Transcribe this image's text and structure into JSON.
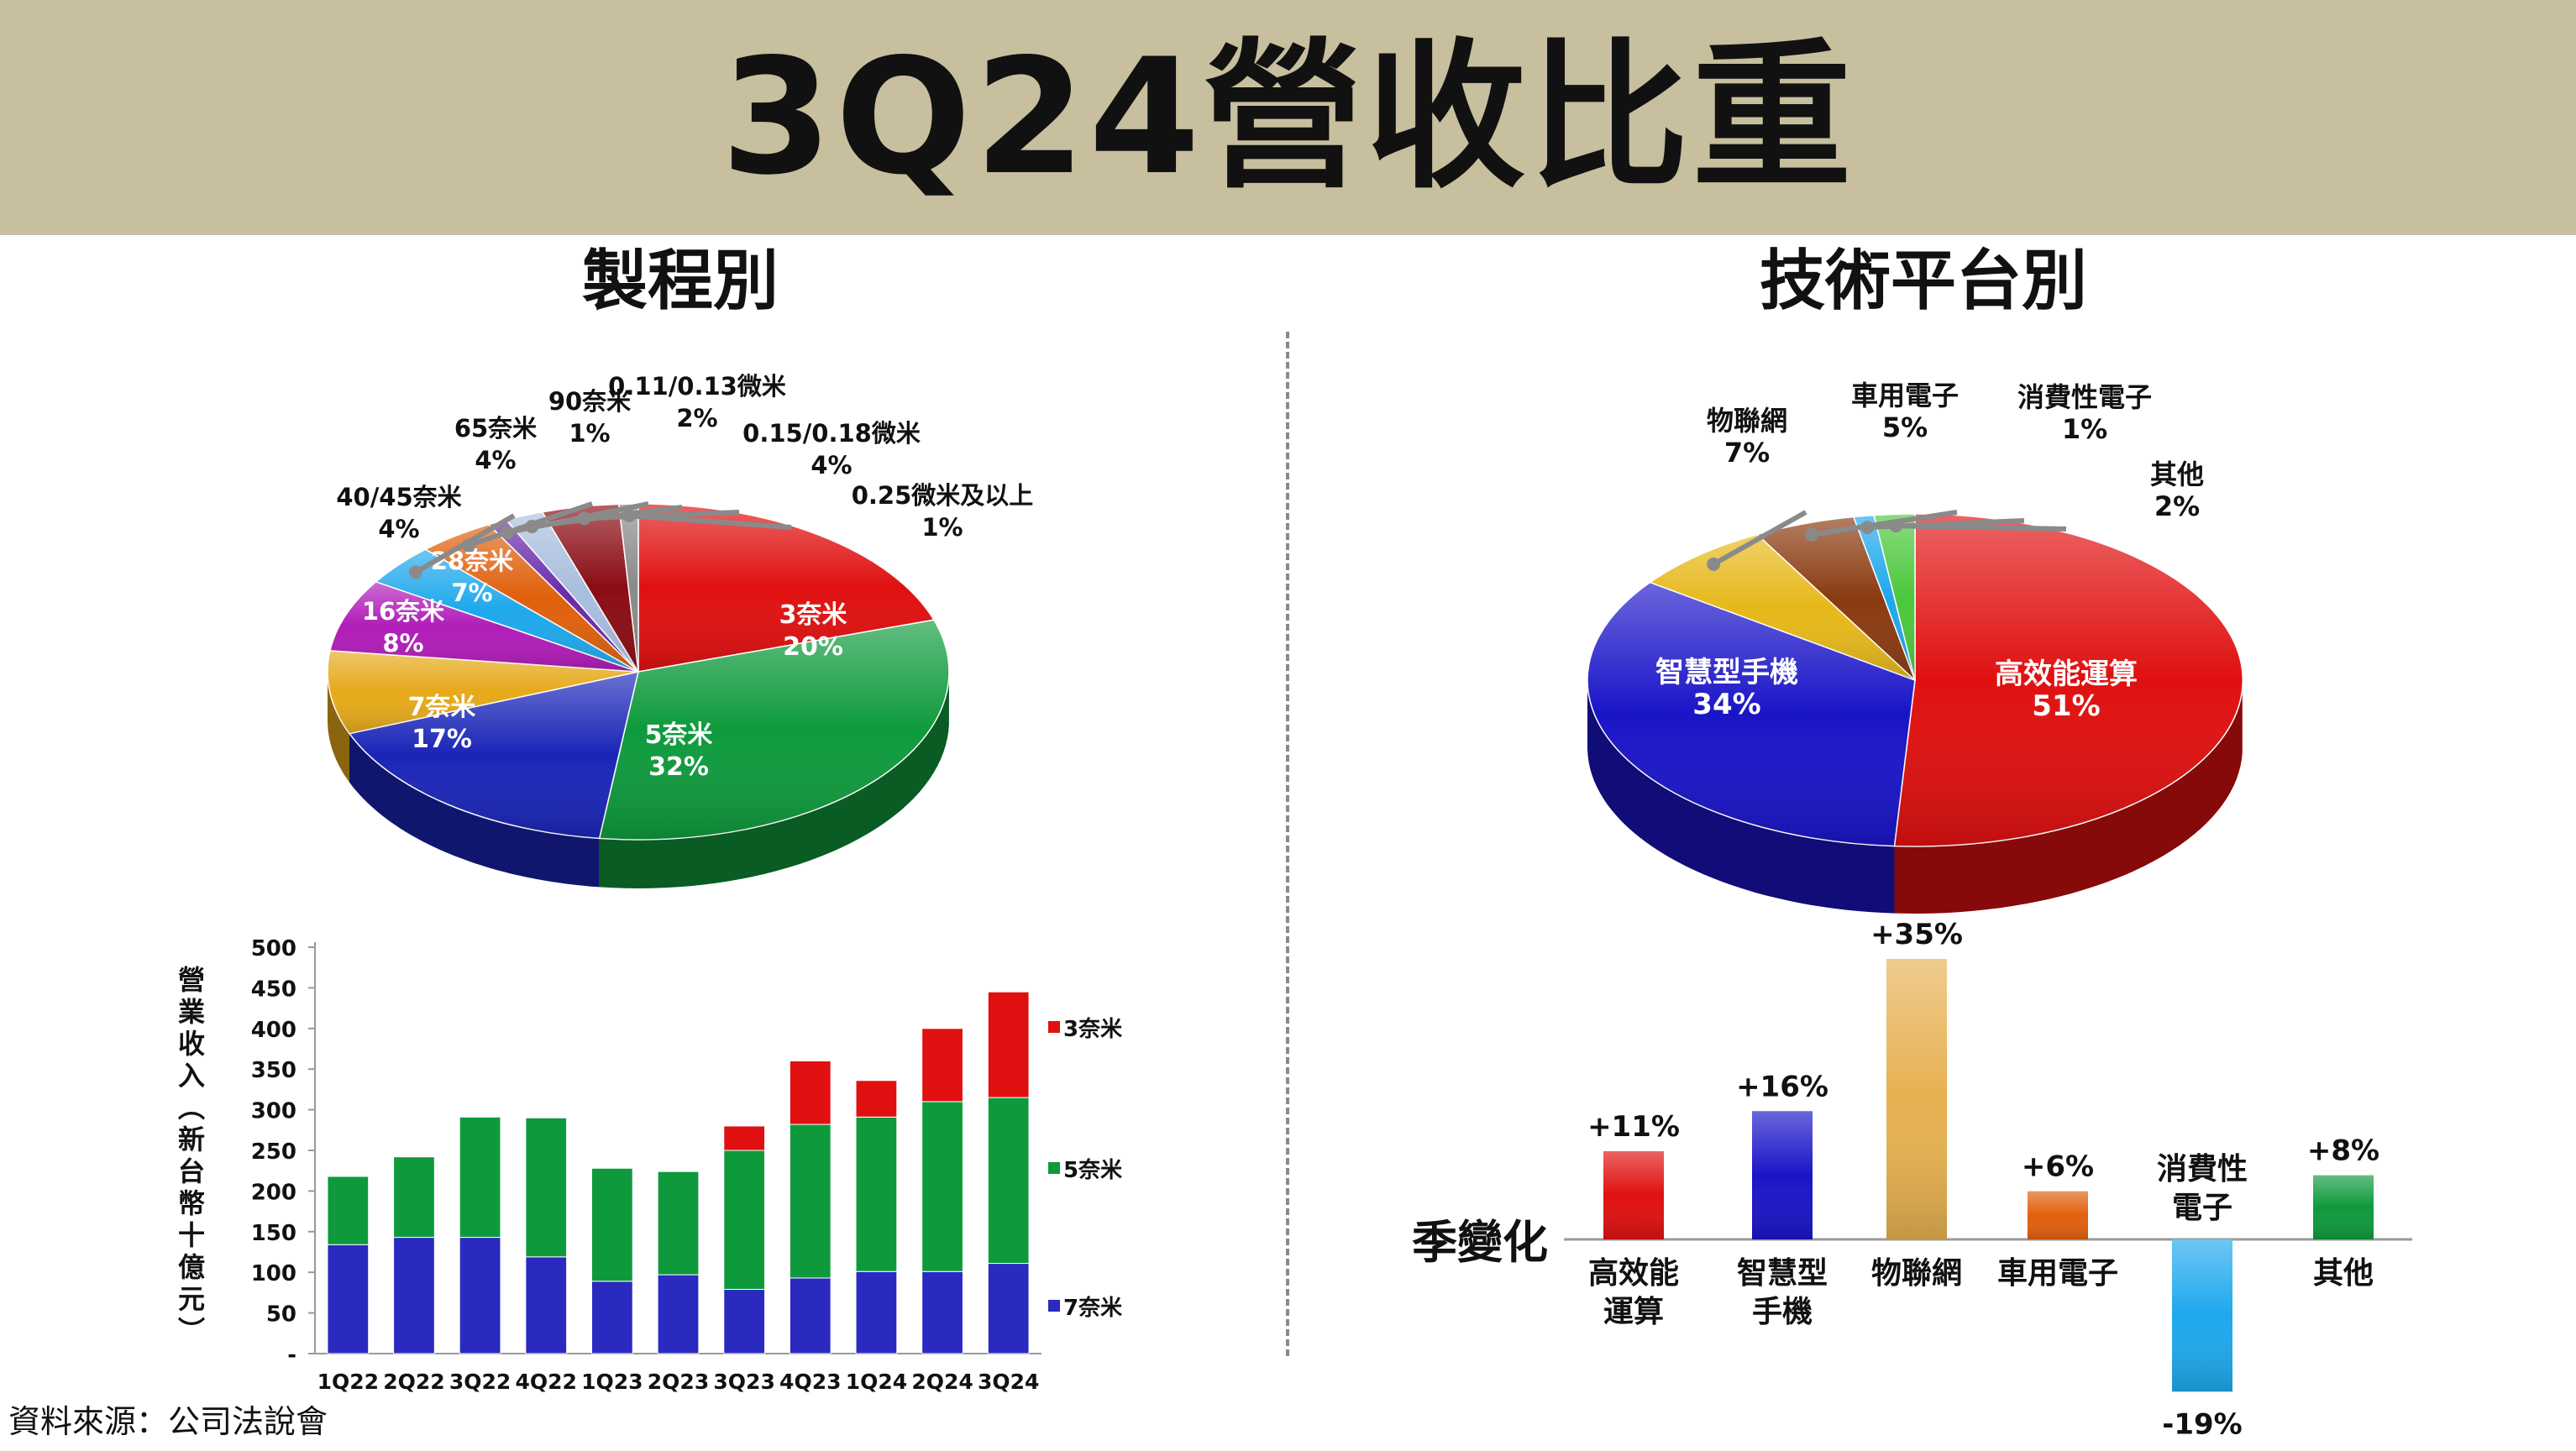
{
  "header": {
    "title": "3Q24營收比重"
  },
  "left_panel": {
    "title": "製程別"
  },
  "right_panel": {
    "title": "技術平台別"
  },
  "footer": {
    "source": "資料來源：公司法說會"
  },
  "colors": {
    "banner": "#c7bf9d"
  },
  "chart_data": [
    {
      "type": "pie",
      "slices": [
        {
          "label": "3奈米",
          "value": 20,
          "value_label": "20%",
          "color": "#e01010"
        },
        {
          "label": "5奈米",
          "value": 32,
          "value_label": "32%",
          "color": "#0e9a3c"
        },
        {
          "label": "7奈米",
          "value": 17,
          "value_label": "17%",
          "color": "#1a25b8"
        },
        {
          "label": "16奈米",
          "value": 8,
          "value_label": "8%",
          "color": "#e6a91a"
        },
        {
          "label": "28奈米",
          "value": 7,
          "value_label": "7%",
          "color": "#b01cb8"
        },
        {
          "label": "40/45奈米",
          "value": 4,
          "value_label": "4%",
          "color": "#1ea8ec"
        },
        {
          "label": "65奈米",
          "value": 4,
          "value_label": "4%",
          "color": "#e0600c"
        },
        {
          "label": "90奈米",
          "value": 1,
          "value_label": "1%",
          "color": "#6a2aa8"
        },
        {
          "label": "0.11/0.13微米",
          "value": 2,
          "value_label": "2%",
          "color": "#a8bede"
        },
        {
          "label": "0.15/0.18微米",
          "value": 4,
          "value_label": "4%",
          "color": "#8a0c14"
        },
        {
          "label": "0.25微米及以上",
          "value": 1,
          "value_label": "1%",
          "color": "#8a8a8a"
        }
      ]
    },
    {
      "type": "pie",
      "slices": [
        {
          "label": "高效能運算",
          "value": 51,
          "value_label": "51%",
          "color": "#e01010"
        },
        {
          "label": "智慧型手機",
          "value": 34,
          "value_label": "34%",
          "color": "#1a14c8"
        },
        {
          "label": "物聯網",
          "value": 7,
          "value_label": "7%",
          "color": "#e6b81a"
        },
        {
          "label": "車用電子",
          "value": 5,
          "value_label": "5%",
          "color": "#8a3a10"
        },
        {
          "label": "消費性電子",
          "value": 1,
          "value_label": "1%",
          "color": "#1ea8ec"
        },
        {
          "label": "其他",
          "value": 2,
          "value_label": "2%",
          "color": "#4cc83c"
        }
      ]
    },
    {
      "type": "bar",
      "stacked": true,
      "ylabel": "營業收入(新台幣十億元)",
      "ylim": [
        0,
        500
      ],
      "yticks": [
        "-",
        "50",
        "100",
        "150",
        "200",
        "250",
        "300",
        "350",
        "400",
        "450",
        "500"
      ],
      "categories": [
        "1Q22",
        "2Q22",
        "3Q22",
        "4Q22",
        "1Q23",
        "2Q23",
        "3Q23",
        "4Q23",
        "1Q24",
        "2Q24",
        "3Q24"
      ],
      "legend_position": "right",
      "series": [
        {
          "name": "7奈米",
          "color": "#2a2ac0",
          "values": [
            134,
            143,
            143,
            119,
            89,
            97,
            79,
            93,
            101,
            101,
            111
          ]
        },
        {
          "name": "5奈米",
          "color": "#0e9a3c",
          "values": [
            84,
            99,
            148,
            171,
            139,
            127,
            171,
            189,
            190,
            209,
            204
          ]
        },
        {
          "name": "3奈米",
          "color": "#e01010",
          "values": [
            0,
            0,
            0,
            0,
            0,
            0,
            30,
            78,
            45,
            90,
            130
          ]
        }
      ]
    },
    {
      "type": "bar",
      "row_label": "季變化",
      "categories": [
        "高效能運算",
        "智慧型手機",
        "物聯網",
        "車用電子",
        "消費性電子",
        "其他"
      ],
      "category_lines": [
        [
          "高效能",
          "運算"
        ],
        [
          "智慧型",
          "手機"
        ],
        [
          "物聯網"
        ],
        [
          "車用電子"
        ],
        [
          "消費性",
          "電子"
        ],
        [
          "其他"
        ]
      ],
      "values": [
        11,
        16,
        35,
        6,
        -19,
        8
      ],
      "value_labels": [
        "+11%",
        "+16%",
        "+35%",
        "+6%",
        "-19%",
        "+8%"
      ],
      "colors": [
        "#e01010",
        "#1a14c8",
        "#e6b050",
        "#e0600c",
        "#1ea8ec",
        "#0e9a3c"
      ]
    }
  ]
}
